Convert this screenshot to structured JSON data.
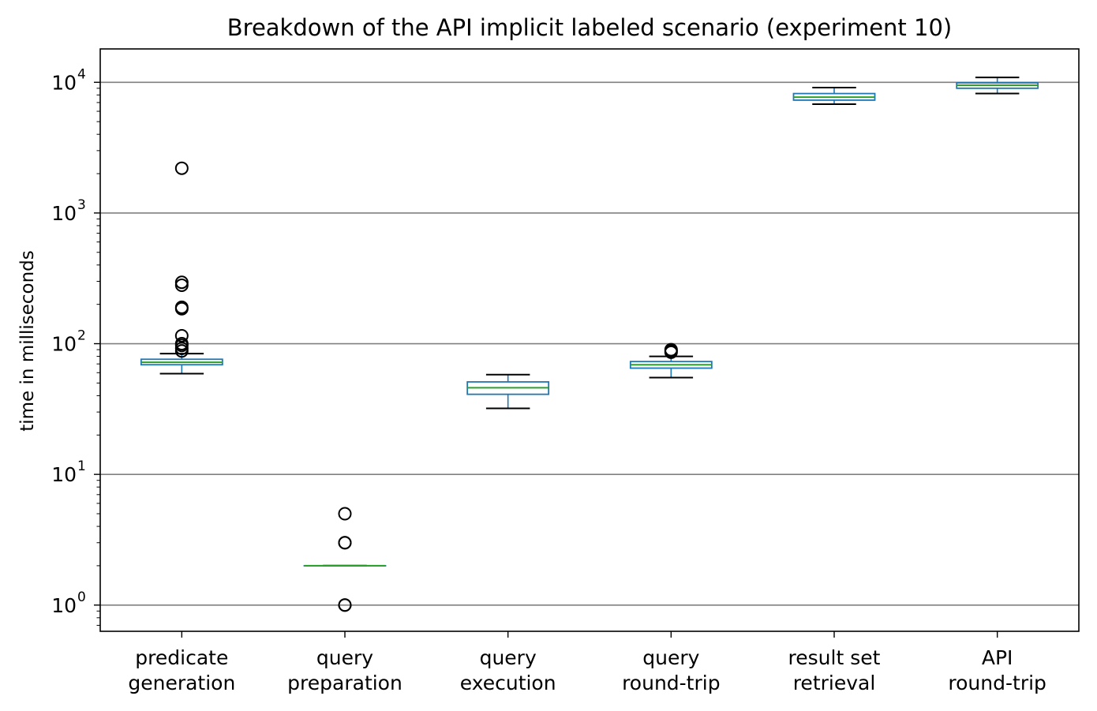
{
  "chart_data": {
    "type": "box",
    "title": "Breakdown of the API implicit labeled scenario (experiment 10)",
    "xlabel": "",
    "ylabel": "time in milliseconds",
    "yscale": "log",
    "ylim": [
      0.63,
      18000
    ],
    "yticks": [
      {
        "value": 1,
        "base": "10",
        "exp": "0"
      },
      {
        "value": 10,
        "base": "10",
        "exp": "1"
      },
      {
        "value": 100,
        "base": "10",
        "exp": "2"
      },
      {
        "value": 1000,
        "base": "10",
        "exp": "3"
      },
      {
        "value": 10000,
        "base": "10",
        "exp": "4"
      }
    ],
    "grid": "horizontal major",
    "colors": {
      "box": "#1f77b4",
      "median": "#2ca02c",
      "whisker": "#000000",
      "grid": "#808080",
      "flier": "#000000"
    },
    "categories": [
      {
        "lines": [
          "predicate",
          "generation"
        ],
        "whislo": 59,
        "q1": 69,
        "med": 72,
        "q3": 76,
        "whishi": 84,
        "fliers": [
          88,
          92,
          97,
          100,
          115,
          185,
          190,
          280,
          295,
          2200
        ]
      },
      {
        "lines": [
          "query",
          "preparation"
        ],
        "whislo": 2,
        "q1": 2,
        "med": 2,
        "q3": 2,
        "whishi": 2,
        "fliers": [
          1,
          1,
          3,
          3,
          5
        ]
      },
      {
        "lines": [
          "query",
          "execution"
        ],
        "whislo": 32,
        "q1": 41,
        "med": 46,
        "q3": 51,
        "whishi": 58,
        "fliers": []
      },
      {
        "lines": [
          "query",
          "round-trip"
        ],
        "whislo": 55,
        "q1": 65,
        "med": 69,
        "q3": 73,
        "whishi": 80,
        "fliers": [
          86,
          88,
          90
        ]
      },
      {
        "lines": [
          "result set",
          "retrieval"
        ],
        "whislo": 6800,
        "q1": 7300,
        "med": 7700,
        "q3": 8200,
        "whishi": 9100,
        "fliers": []
      },
      {
        "lines": [
          "API",
          "round-trip"
        ],
        "whislo": 8200,
        "q1": 9000,
        "med": 9500,
        "q3": 9900,
        "whishi": 10900,
        "fliers": []
      }
    ]
  }
}
